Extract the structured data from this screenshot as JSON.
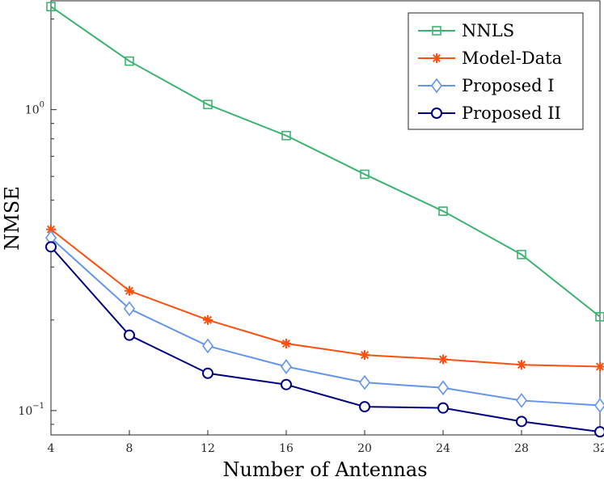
{
  "chart_data": {
    "type": "line",
    "yscale": "log",
    "xlabel": "Number of Antennas",
    "ylabel": "NMSE",
    "x": [
      4,
      8,
      12,
      16,
      20,
      24,
      28,
      32
    ],
    "xlim": [
      4,
      32
    ],
    "ylim": [
      0.083,
      2.3
    ],
    "xticks": [
      "4",
      "8",
      "12",
      "16",
      "20",
      "24",
      "28",
      "32"
    ],
    "yticks": [
      {
        "value": 1,
        "base": "10",
        "exp": "0"
      },
      {
        "value": 0.1,
        "base": "10",
        "exp": "−1"
      }
    ],
    "legend_position": "top-right",
    "series": [
      {
        "name": "NNLS",
        "color": "#3cb371",
        "marker": "square",
        "values": [
          2.2,
          1.45,
          1.04,
          0.82,
          0.61,
          0.46,
          0.33,
          0.205
        ]
      },
      {
        "name": "Model-Data",
        "color": "#ff5010",
        "marker": "asterisk",
        "values": [
          0.4,
          0.25,
          0.2,
          0.167,
          0.153,
          0.148,
          0.142,
          0.14
        ]
      },
      {
        "name": "Proposed I",
        "color": "#6495ed",
        "marker": "diamond",
        "values": [
          0.375,
          0.218,
          0.164,
          0.14,
          0.124,
          0.119,
          0.108,
          0.104
        ]
      },
      {
        "name": "Proposed II",
        "color": "#000080",
        "marker": "circle",
        "values": [
          0.35,
          0.178,
          0.133,
          0.122,
          0.103,
          0.102,
          0.092,
          0.085
        ]
      }
    ]
  }
}
